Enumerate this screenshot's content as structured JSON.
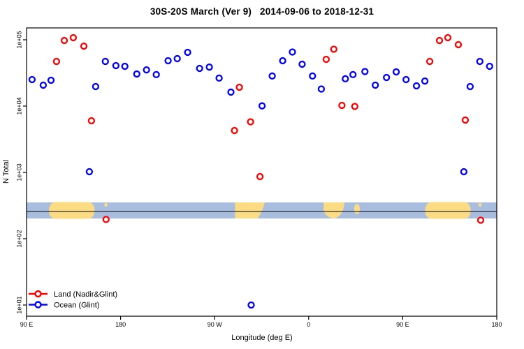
{
  "title": "30S-20S March (Ver 9)   2014-09-06 to 2018-12-31",
  "legend": {
    "land_label": "Land (Nadir&Glint)",
    "ocean_label": "Ocean (Glint)"
  },
  "colors": {
    "land": "#ff0000",
    "ocean": "#0000ff",
    "map_ocean": "#a9bedf",
    "map_land": "#fbdc84",
    "axis": "#000000"
  },
  "chart_data": {
    "type": "scatter",
    "title": "30S-20S March (Ver 9)   2014-09-06 to 2018-12-31",
    "xlabel": "Longitude (deg E)",
    "ylabel": "N Total",
    "y_scale": "log10",
    "ylim": [
      10,
      100000
    ],
    "y_ticks": [
      {
        "value": 100000,
        "label": "1e+05"
      },
      {
        "value": 10000,
        "label": "1e+04"
      },
      {
        "value": 1000,
        "label": "1e+03"
      },
      {
        "value": 100,
        "label": "1e+02"
      },
      {
        "value": 10,
        "label": "1e+01"
      }
    ],
    "x_axis_span_deg": [
      90,
      540
    ],
    "x_ticks": [
      {
        "pos": 90,
        "label": "90 E"
      },
      {
        "pos": 180,
        "label": "180"
      },
      {
        "pos": 270,
        "label": "90 W"
      },
      {
        "pos": 360,
        "label": "0"
      },
      {
        "pos": 450,
        "label": "90 E"
      },
      {
        "pos": 540,
        "label": "180"
      }
    ],
    "grid": false,
    "legend_position": "bottom-left",
    "series": [
      {
        "name": "Land (Nadir&Glint)",
        "color_key": "land",
        "marker": "open-circle",
        "points": [
          [
            118.7,
            47200
          ],
          [
            126.1,
            97600
          ],
          [
            134.7,
            107600
          ],
          [
            144.8,
            80300
          ],
          [
            152.1,
            6010
          ],
          [
            166.1,
            195
          ],
          [
            289.0,
            4280
          ],
          [
            293.7,
            19250
          ],
          [
            304.4,
            5790
          ],
          [
            313.4,
            865
          ],
          [
            376.8,
            50700
          ],
          [
            384.1,
            72100
          ],
          [
            391.8,
            10250
          ],
          [
            404.1,
            9890
          ],
          [
            475.9,
            47200
          ],
          [
            485.2,
            97600
          ],
          [
            493.2,
            107600
          ],
          [
            503.2,
            84300
          ],
          [
            509.9,
            6160
          ],
          [
            524.6,
            190
          ]
        ]
      },
      {
        "name": "Ocean (Glint)",
        "color_key": "ocean",
        "marker": "open-circle",
        "points": [
          [
            95.3,
            25100
          ],
          [
            106.0,
            20700
          ],
          [
            113.4,
            24500
          ],
          [
            150.1,
            1025
          ],
          [
            156.1,
            19700
          ],
          [
            165.4,
            47200
          ],
          [
            175.5,
            40800
          ],
          [
            184.1,
            39800
          ],
          [
            195.5,
            30500
          ],
          [
            204.8,
            35200
          ],
          [
            214.2,
            29800
          ],
          [
            225.5,
            48300
          ],
          [
            234.2,
            52000
          ],
          [
            244.2,
            64700
          ],
          [
            255.6,
            37000
          ],
          [
            264.9,
            38800
          ],
          [
            274.3,
            26400
          ],
          [
            285.6,
            16250
          ],
          [
            305.0,
            10
          ],
          [
            315.4,
            10070
          ],
          [
            325.1,
            28400
          ],
          [
            335.1,
            48300
          ],
          [
            344.4,
            65500
          ],
          [
            353.7,
            42800
          ],
          [
            363.7,
            28400
          ],
          [
            372.1,
            18100
          ],
          [
            395.1,
            25800
          ],
          [
            402.4,
            29800
          ],
          [
            413.8,
            33200
          ],
          [
            423.8,
            20700
          ],
          [
            434.5,
            27000
          ],
          [
            443.8,
            32800
          ],
          [
            453.2,
            25100
          ],
          [
            463.2,
            20200
          ],
          [
            471.2,
            23900
          ],
          [
            508.5,
            1025
          ],
          [
            514.5,
            19700
          ],
          [
            523.8,
            47200
          ],
          [
            533.2,
            39800
          ]
        ]
      }
    ],
    "map_strip": {
      "description": "latitude band 30S-20S land/ocean map",
      "land_masses": [
        {
          "name": "australia",
          "from": 111.5,
          "to": 155,
          "shape": "blob"
        },
        {
          "name": "new-caledonia",
          "from": 164.5,
          "to": 167.5,
          "shape": "speck"
        },
        {
          "name": "south-america",
          "from": 289.5,
          "to": 318,
          "shape": "taper"
        },
        {
          "name": "africa",
          "from": 373,
          "to": 394.5,
          "shape": "round-bottom"
        },
        {
          "name": "madagascar",
          "from": 403.5,
          "to": 409,
          "shape": "island"
        },
        {
          "name": "australia",
          "from": 471.5,
          "to": 515,
          "shape": "blob"
        },
        {
          "name": "new-caledonia",
          "from": 522.5,
          "to": 525.5,
          "shape": "speck"
        }
      ]
    }
  }
}
